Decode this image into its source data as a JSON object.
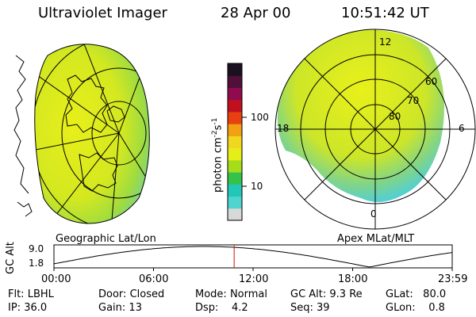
{
  "header": {
    "instrument": "Ultraviolet Imager",
    "date": "28 Apr 00",
    "time": "10:51:42 UT"
  },
  "left_panel": {
    "label": "Geographic Lat/Lon"
  },
  "right_panel": {
    "label": "Apex MLat/MLT",
    "mlt_labels": [
      "12",
      "18",
      "6",
      "0"
    ],
    "lat_labels": [
      "60",
      "70",
      "80"
    ]
  },
  "colorbar": {
    "unit_label": "photon cm",
    "unit_sup1": "-2",
    "unit_s": "s",
    "unit_sup2": "-1",
    "ticks": [
      "100",
      "10"
    ],
    "colors": [
      "#d8d8d8",
      "#4fd4d0",
      "#22c7b8",
      "#35c24a",
      "#a6dd1a",
      "#e6ee19",
      "#f0d820",
      "#f0a010",
      "#e84010",
      "#c01020",
      "#900a50",
      "#50103a",
      "#1a1020"
    ]
  },
  "orbit_plot": {
    "ylabel": "GC Alt",
    "yticks": [
      "9.0",
      "1.8"
    ],
    "xticks": [
      "00:00",
      "06:00",
      "12:00",
      "18:00",
      "23:59"
    ],
    "marker_hour": 10.86
  },
  "info": {
    "row1": [
      {
        "label": "Flt:",
        "value": "LBHL"
      },
      {
        "label": "Door:",
        "value": "Closed"
      },
      {
        "label": "Mode:",
        "value": "Normal"
      },
      {
        "label": "GC Alt:",
        "value": "9.3 Re"
      },
      {
        "label": "GLat:",
        "value": "80.0"
      }
    ],
    "row2": [
      {
        "label": "IP:",
        "value": "36.0"
      },
      {
        "label": "Gain:",
        "value": "13"
      },
      {
        "label": "Dsp:",
        "value": "4.2"
      },
      {
        "label": "Seq:",
        "value": "39"
      },
      {
        "label": "GLon:",
        "value": "0.8"
      }
    ]
  }
}
